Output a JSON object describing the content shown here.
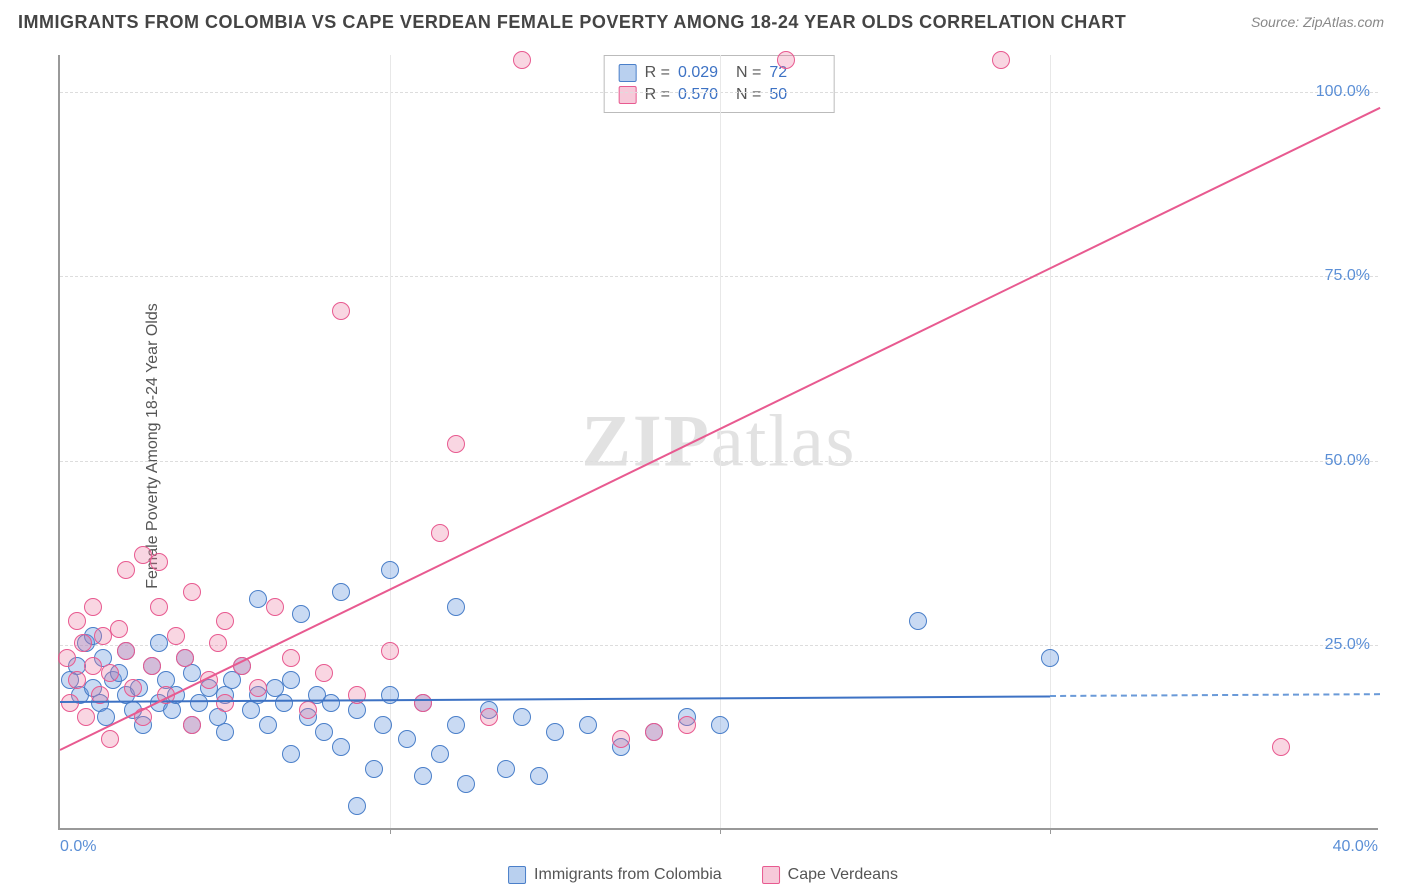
{
  "title": "IMMIGRANTS FROM COLOMBIA VS CAPE VERDEAN FEMALE POVERTY AMONG 18-24 YEAR OLDS CORRELATION CHART",
  "source_label": "Source:",
  "source_value": "ZipAtlas.com",
  "ylabel": "Female Poverty Among 18-24 Year Olds",
  "watermark_a": "ZIP",
  "watermark_b": "atlas",
  "chart": {
    "type": "scatter",
    "xlim": [
      0,
      40
    ],
    "ylim": [
      0,
      105
    ],
    "xtick_step": 10,
    "xtick_origin": "0.0%",
    "xtick_end": "40.0%",
    "yticks": [
      {
        "v": 25,
        "label": "25.0%"
      },
      {
        "v": 50,
        "label": "50.0%"
      },
      {
        "v": 75,
        "label": "75.0%"
      },
      {
        "v": 100,
        "label": "100.0%"
      }
    ],
    "background_color": "#ffffff",
    "grid_color": "#dddddd",
    "point_radius": 9,
    "colors": {
      "blue_fill": "rgba(100,150,220,0.35)",
      "blue_stroke": "#4a7fc9",
      "pink_fill": "rgba(235,120,160,0.30)",
      "pink_stroke": "#e85a90",
      "trend_blue": "#3d72c4",
      "trend_pink": "#e85a90",
      "tick_text": "#5b8fd6"
    },
    "series": [
      {
        "name": "Immigrants from Colombia",
        "color_key": "blue",
        "R": "0.029",
        "N": "72",
        "trend": {
          "x1": 0,
          "y1": 17.5,
          "x2": 40,
          "y2": 18.5,
          "dash_after_x": 30
        },
        "points": [
          [
            0.3,
            20
          ],
          [
            0.5,
            22
          ],
          [
            0.6,
            18
          ],
          [
            0.8,
            25
          ],
          [
            1.0,
            19
          ],
          [
            1.0,
            26
          ],
          [
            1.2,
            17
          ],
          [
            1.3,
            23
          ],
          [
            1.4,
            15
          ],
          [
            1.6,
            20
          ],
          [
            1.8,
            21
          ],
          [
            2.0,
            18
          ],
          [
            2.0,
            24
          ],
          [
            2.2,
            16
          ],
          [
            2.4,
            19
          ],
          [
            2.5,
            14
          ],
          [
            2.8,
            22
          ],
          [
            3.0,
            17
          ],
          [
            3.0,
            25
          ],
          [
            3.2,
            20
          ],
          [
            3.4,
            16
          ],
          [
            3.5,
            18
          ],
          [
            3.8,
            23
          ],
          [
            4.0,
            14
          ],
          [
            4.0,
            21
          ],
          [
            4.2,
            17
          ],
          [
            4.5,
            19
          ],
          [
            4.8,
            15
          ],
          [
            5.0,
            18
          ],
          [
            5.0,
            13
          ],
          [
            5.2,
            20
          ],
          [
            5.5,
            22
          ],
          [
            5.8,
            16
          ],
          [
            6.0,
            18
          ],
          [
            6.0,
            31
          ],
          [
            6.3,
            14
          ],
          [
            6.5,
            19
          ],
          [
            6.8,
            17
          ],
          [
            7.0,
            10
          ],
          [
            7.0,
            20
          ],
          [
            7.3,
            29
          ],
          [
            7.5,
            15
          ],
          [
            7.8,
            18
          ],
          [
            8.0,
            13
          ],
          [
            8.2,
            17
          ],
          [
            8.5,
            11
          ],
          [
            8.5,
            32
          ],
          [
            9.0,
            3
          ],
          [
            9.0,
            16
          ],
          [
            9.5,
            8
          ],
          [
            9.8,
            14
          ],
          [
            10.0,
            18
          ],
          [
            10.0,
            35
          ],
          [
            10.5,
            12
          ],
          [
            11.0,
            7
          ],
          [
            11.0,
            17
          ],
          [
            11.5,
            10
          ],
          [
            12.0,
            30
          ],
          [
            12.0,
            14
          ],
          [
            12.3,
            6
          ],
          [
            13.0,
            16
          ],
          [
            13.5,
            8
          ],
          [
            14.0,
            15
          ],
          [
            14.5,
            7
          ],
          [
            15.0,
            13
          ],
          [
            16.0,
            14
          ],
          [
            17.0,
            11
          ],
          [
            18.0,
            13
          ],
          [
            19.0,
            15
          ],
          [
            20.0,
            14
          ],
          [
            26.0,
            28
          ],
          [
            30.0,
            23
          ]
        ]
      },
      {
        "name": "Cape Verdeans",
        "color_key": "pink",
        "R": "0.570",
        "N": "50",
        "trend": {
          "x1": 0,
          "y1": 11,
          "x2": 40,
          "y2": 98,
          "dash_after_x": null
        },
        "points": [
          [
            0.2,
            23
          ],
          [
            0.3,
            17
          ],
          [
            0.5,
            28
          ],
          [
            0.5,
            20
          ],
          [
            0.7,
            25
          ],
          [
            0.8,
            15
          ],
          [
            1.0,
            22
          ],
          [
            1.0,
            30
          ],
          [
            1.2,
            18
          ],
          [
            1.3,
            26
          ],
          [
            1.5,
            21
          ],
          [
            1.5,
            12
          ],
          [
            1.8,
            27
          ],
          [
            2.0,
            24
          ],
          [
            2.0,
            35
          ],
          [
            2.2,
            19
          ],
          [
            2.5,
            37
          ],
          [
            2.5,
            15
          ],
          [
            2.8,
            22
          ],
          [
            3.0,
            30
          ],
          [
            3.0,
            36
          ],
          [
            3.2,
            18
          ],
          [
            3.5,
            26
          ],
          [
            3.8,
            23
          ],
          [
            4.0,
            32
          ],
          [
            4.0,
            14
          ],
          [
            4.5,
            20
          ],
          [
            4.8,
            25
          ],
          [
            5.0,
            17
          ],
          [
            5.0,
            28
          ],
          [
            5.5,
            22
          ],
          [
            6.0,
            19
          ],
          [
            6.5,
            30
          ],
          [
            7.0,
            23
          ],
          [
            7.5,
            16
          ],
          [
            8.0,
            21
          ],
          [
            8.5,
            70
          ],
          [
            9.0,
            18
          ],
          [
            10.0,
            24
          ],
          [
            11.0,
            17
          ],
          [
            11.5,
            40
          ],
          [
            12.0,
            52
          ],
          [
            13.0,
            15
          ],
          [
            14.0,
            104
          ],
          [
            17.0,
            12
          ],
          [
            18.0,
            13
          ],
          [
            19.0,
            14
          ],
          [
            22.0,
            104
          ],
          [
            28.5,
            104
          ],
          [
            37.0,
            11
          ]
        ]
      }
    ]
  },
  "stats_box": {
    "r_label": "R =",
    "n_label": "N ="
  },
  "legend": {
    "items": [
      {
        "label": "Immigrants from Colombia",
        "color_key": "blue"
      },
      {
        "label": "Cape Verdeans",
        "color_key": "pink"
      }
    ]
  }
}
